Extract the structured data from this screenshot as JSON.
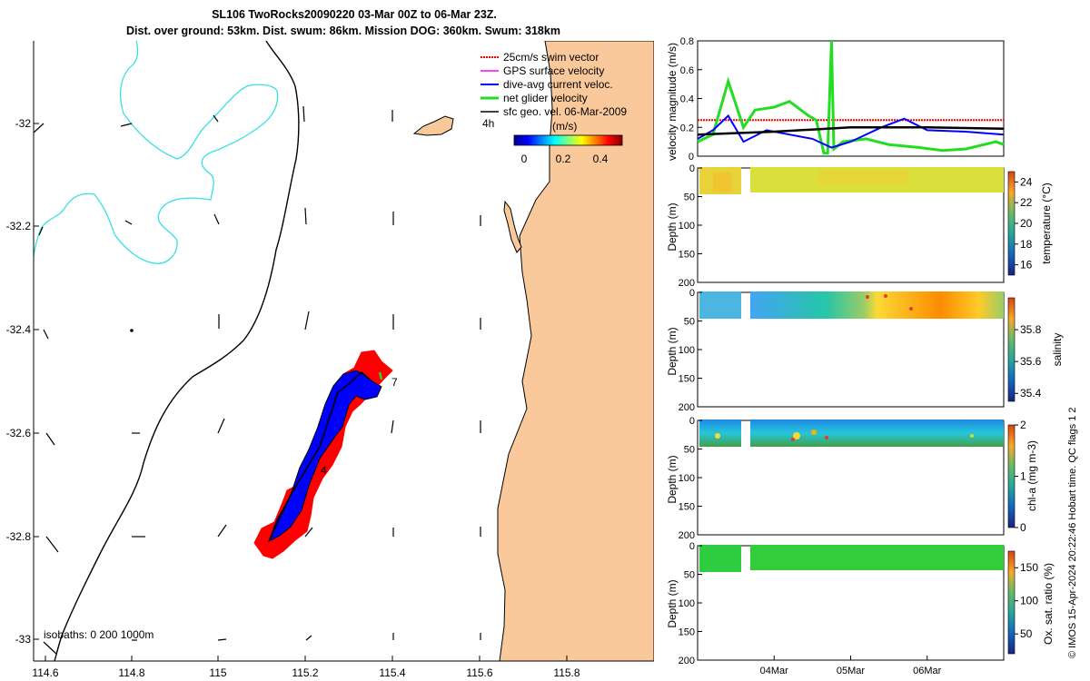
{
  "title_line1": "SL106 TwoRocks20090220 03-Mar 00Z to 06-Mar 23Z.",
  "title_line2": "Dist. over ground: 53km. Dist. swum: 86km. Mission DOG: 360km. Swum: 318km",
  "colors": {
    "land": "#f9c99b",
    "coast": "#000000",
    "isobath": "#39e0e0",
    "swim": "#ff0000",
    "gps": "#ff00ff",
    "dive_avg": "#0000ff",
    "net": "#22dd22",
    "geo": "#000000"
  },
  "map": {
    "lon_ticks": [
      "114.6",
      "114.8",
      "115",
      "115.2",
      "115.4",
      "115.6",
      "115.8"
    ],
    "lat_ticks": [
      "-32",
      "-32.2",
      "-32.4",
      "-32.6",
      "-32.8",
      "-33"
    ],
    "isobaths_label": "isobaths: 0   200  1000m",
    "waypoint_labels": [
      "4h",
      "7",
      "4"
    ],
    "colorbar": {
      "unit": "(m/s)",
      "ticks": [
        "0",
        "0.2",
        "0.4"
      ]
    },
    "legend": [
      "25cm/s swim vector",
      "GPS surface velocity",
      "dive-avg current veloc.",
      "net glider velocity",
      "sfc geo. vel. 06-Mar-2009"
    ]
  },
  "chart_data": [
    {
      "type": "line",
      "title": "velocity magnitude (m/s)",
      "ylabel": "velocity magnitude (m/s)",
      "ylim": [
        0,
        0.8
      ],
      "yticks": [
        "0",
        "0.2",
        "0.4",
        "0.6",
        "0.8"
      ],
      "xlim_days": [
        0,
        4
      ],
      "series": [
        {
          "name": "25cm/s swim vector",
          "x": [
            0,
            4
          ],
          "y": [
            0.25,
            0.25
          ]
        },
        {
          "name": "net glider velocity",
          "x": [
            0,
            0.2,
            0.4,
            0.6,
            0.75,
            1.0,
            1.2,
            1.45,
            1.55,
            1.65,
            1.7,
            1.75,
            1.78,
            1.9,
            2.2,
            2.5,
            2.9,
            3.2,
            3.5,
            3.9,
            4.0
          ],
          "y": [
            0.1,
            0.15,
            0.52,
            0.2,
            0.32,
            0.34,
            0.38,
            0.28,
            0.25,
            0.02,
            0.02,
            0.8,
            0.05,
            0.1,
            0.12,
            0.08,
            0.06,
            0.04,
            0.05,
            0.1,
            0.08
          ]
        },
        {
          "name": "dive-avg current veloc.",
          "x": [
            0,
            0.2,
            0.4,
            0.6,
            0.9,
            1.2,
            1.5,
            1.75,
            2.0,
            2.4,
            2.7,
            3.0,
            3.5,
            4.0
          ],
          "y": [
            0.12,
            0.18,
            0.28,
            0.1,
            0.18,
            0.15,
            0.12,
            0.06,
            0.1,
            0.2,
            0.26,
            0.18,
            0.17,
            0.15
          ]
        },
        {
          "name": "sfc geo. vel.",
          "x": [
            0,
            1.0,
            2.0,
            3.0,
            4.0
          ],
          "y": [
            0.15,
            0.17,
            0.2,
            0.2,
            0.19
          ]
        }
      ]
    },
    {
      "type": "scatter",
      "title": "temperature (°C)",
      "ylabel": "Depth (m)",
      "ylim": [
        200,
        0
      ],
      "yticks": [
        "0",
        "50",
        "100",
        "150",
        "200"
      ],
      "colorbar_label": "temperature (°C)",
      "colorbar_ticks": [
        "16",
        "18",
        "20",
        "22",
        "24"
      ],
      "colorbar_range": [
        15,
        25
      ],
      "values_summary": {
        "min": 21,
        "max": 23.5,
        "typical": 22.5
      }
    },
    {
      "type": "scatter",
      "title": "salinity",
      "ylabel": "Depth (m)",
      "ylim": [
        200,
        0
      ],
      "yticks": [
        "0",
        "50",
        "100",
        "150",
        "200"
      ],
      "colorbar_label": "salinity",
      "colorbar_ticks": [
        "35.4",
        "35.6",
        "35.8"
      ],
      "colorbar_range": [
        35.35,
        36.0
      ],
      "values_summary": {
        "min": 35.5,
        "max": 35.9,
        "typical": 35.7
      }
    },
    {
      "type": "scatter",
      "title": "chl-a (mg m-3)",
      "ylabel": "Depth (m)",
      "ylim": [
        200,
        0
      ],
      "yticks": [
        "0",
        "50",
        "100",
        "150",
        "200"
      ],
      "colorbar_label": "chl-a (mg m-3)",
      "colorbar_ticks": [
        "0",
        "1",
        "2"
      ],
      "colorbar_range": [
        0,
        2
      ],
      "values_summary": {
        "min": 0.3,
        "max": 1.8,
        "typical": 0.8
      }
    },
    {
      "type": "scatter",
      "title": "Ox. sat. ratio (%)",
      "ylabel": "Depth (m)",
      "ylim": [
        200,
        0
      ],
      "yticks": [
        "0",
        "50",
        "100",
        "150",
        "200"
      ],
      "colorbar_label": "Ox. sat. ratio (%)",
      "colorbar_ticks": [
        "50",
        "100",
        "150"
      ],
      "colorbar_range": [
        20,
        175
      ],
      "values_summary": {
        "min": 95,
        "max": 115,
        "typical": 105
      },
      "xticks": [
        "04Mar",
        "05Mar",
        "06Mar"
      ]
    }
  ],
  "side_note": "© IMOS 15-Apr-2024 20:22:46 Hobart time. QC flags 1  2"
}
